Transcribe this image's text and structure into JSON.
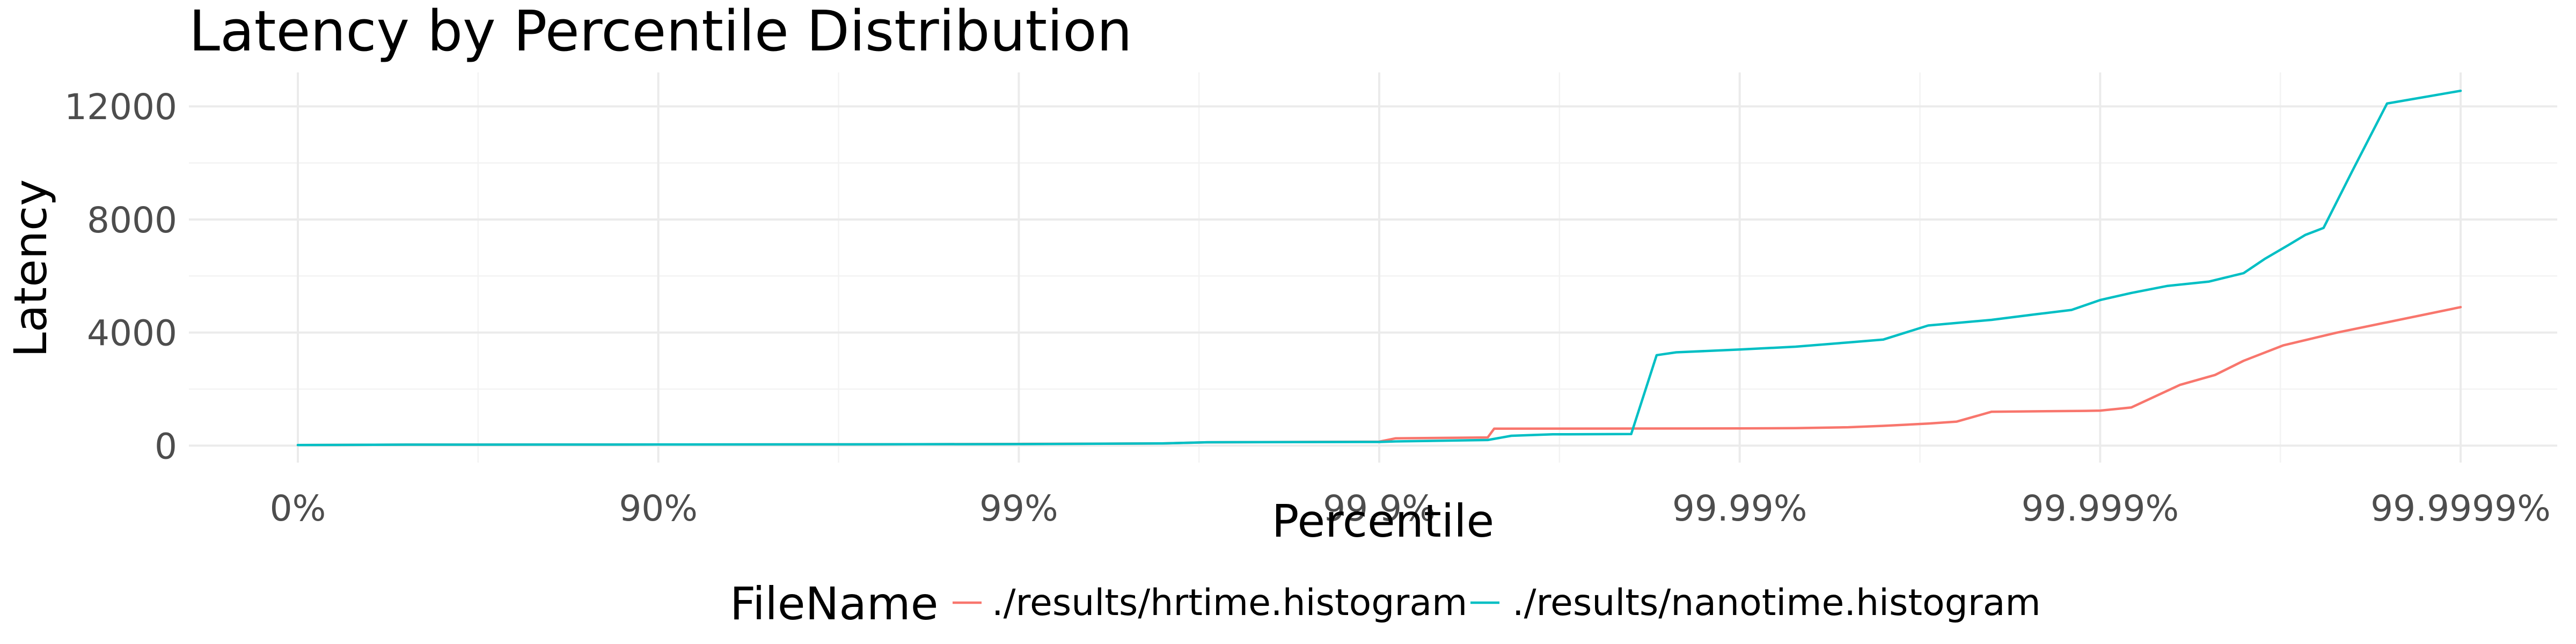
{
  "chart_data": {
    "type": "line",
    "title": "Latency by Percentile Distribution",
    "xlabel": "Percentile",
    "ylabel": "Latency",
    "x_scale": "log 1/(1-percentile)",
    "x_ticks": [
      {
        "value": 0,
        "label": "0%"
      },
      {
        "value": 0.9,
        "label": "90%"
      },
      {
        "value": 0.99,
        "label": "99%"
      },
      {
        "value": 0.999,
        "label": "99.9%"
      },
      {
        "value": 0.9999,
        "label": "99.99%"
      },
      {
        "value": 0.99999,
        "label": "99.999%"
      },
      {
        "value": 0.999999,
        "label": "99.9999%"
      }
    ],
    "y_ticks": [
      0,
      4000,
      8000,
      12000
    ],
    "y_tick_labels": [
      "0",
      "4000",
      "8000",
      "12000"
    ],
    "ylim": [
      -600,
      13200
    ],
    "grid": true,
    "legend": {
      "title": "FileName",
      "position": "bottom"
    },
    "series": [
      {
        "name": "./results/hrtime.histogram",
        "color": "#F8766D",
        "points": [
          [
            0,
            20
          ],
          [
            0.5,
            35
          ],
          [
            0.9,
            40
          ],
          [
            0.97,
            45
          ],
          [
            0.99,
            60
          ],
          [
            0.996,
            80
          ],
          [
            0.997,
            120
          ],
          [
            0.999,
            140
          ],
          [
            0.9991,
            260
          ],
          [
            0.9995,
            290
          ],
          [
            0.99952,
            600
          ],
          [
            0.9999,
            610
          ],
          [
            0.99993,
            620
          ],
          [
            0.99995,
            650
          ],
          [
            0.99996,
            700
          ],
          [
            0.99997,
            780
          ],
          [
            0.999975,
            850
          ],
          [
            0.99998,
            1200
          ],
          [
            0.999989,
            1230
          ],
          [
            0.99999,
            1240
          ],
          [
            0.9999918,
            1350
          ],
          [
            0.999994,
            2150
          ],
          [
            0.9999952,
            2500
          ],
          [
            0.999996,
            3000
          ],
          [
            0.9999969,
            3550
          ],
          [
            0.9999978,
            4000
          ],
          [
            0.999999,
            4900
          ]
        ]
      },
      {
        "name": "./results/nanotime.histogram",
        "color": "#00BFC4",
        "points": [
          [
            0,
            20
          ],
          [
            0.5,
            35
          ],
          [
            0.9,
            40
          ],
          [
            0.97,
            45
          ],
          [
            0.99,
            55
          ],
          [
            0.996,
            80
          ],
          [
            0.997,
            120
          ],
          [
            0.999,
            130
          ],
          [
            0.9991,
            150
          ],
          [
            0.9995,
            200
          ],
          [
            0.99957,
            350
          ],
          [
            0.99967,
            400
          ],
          [
            0.9998,
            410
          ],
          [
            0.99983,
            3200
          ],
          [
            0.99985,
            3300
          ],
          [
            0.9999,
            3400
          ],
          [
            0.99993,
            3500
          ],
          [
            0.99995,
            3650
          ],
          [
            0.99996,
            3750
          ],
          [
            0.99997,
            4250
          ],
          [
            0.99998,
            4450
          ],
          [
            0.999985,
            4650
          ],
          [
            0.999988,
            4800
          ],
          [
            0.99999,
            5150
          ],
          [
            0.9999918,
            5400
          ],
          [
            0.9999935,
            5650
          ],
          [
            0.999995,
            5800
          ],
          [
            0.999996,
            6100
          ],
          [
            0.9999965,
            6600
          ],
          [
            0.999997,
            7100
          ],
          [
            0.9999973,
            7450
          ],
          [
            0.9999976,
            7700
          ],
          [
            0.999998,
            9700
          ],
          [
            0.9999984,
            12100
          ],
          [
            0.999999,
            12550
          ]
        ]
      }
    ]
  }
}
